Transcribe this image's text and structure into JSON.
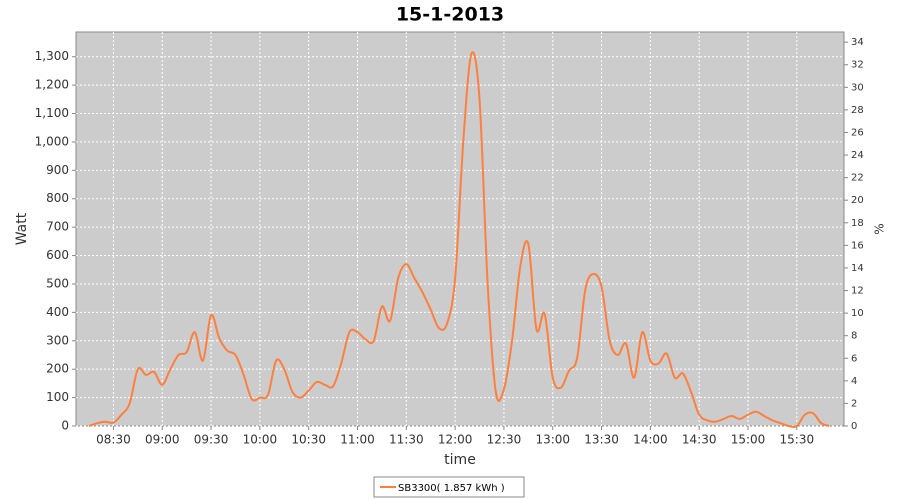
{
  "chart_data": {
    "type": "line",
    "title": "15-1-2013",
    "x_label": "time",
    "y_label": "Watt",
    "y2_label": "%",
    "x": [
      "08:15",
      "08:20",
      "08:25",
      "08:30",
      "08:35",
      "08:40",
      "08:45",
      "08:50",
      "08:55",
      "09:00",
      "09:05",
      "09:10",
      "09:15",
      "09:20",
      "09:25",
      "09:30",
      "09:35",
      "09:40",
      "09:45",
      "09:50",
      "09:55",
      "10:00",
      "10:05",
      "10:10",
      "10:15",
      "10:20",
      "10:25",
      "10:30",
      "10:35",
      "10:40",
      "10:45",
      "10:50",
      "10:55",
      "11:00",
      "11:05",
      "11:10",
      "11:15",
      "11:20",
      "11:25",
      "11:30",
      "11:35",
      "11:40",
      "11:45",
      "11:50",
      "11:55",
      "12:00",
      "12:05",
      "12:10",
      "12:15",
      "12:20",
      "12:25",
      "12:30",
      "12:35",
      "12:40",
      "12:45",
      "12:50",
      "12:55",
      "13:00",
      "13:05",
      "13:10",
      "13:15",
      "13:20",
      "13:25",
      "13:30",
      "13:35",
      "13:40",
      "13:45",
      "13:50",
      "13:55",
      "14:00",
      "14:05",
      "14:10",
      "14:15",
      "14:20",
      "14:25",
      "14:30",
      "14:35",
      "14:40",
      "14:45",
      "14:50",
      "14:55",
      "15:00",
      "15:05",
      "15:10",
      "15:15",
      "15:20",
      "15:25",
      "15:30",
      "15:35",
      "15:40",
      "15:45",
      "15:50"
    ],
    "series": [
      {
        "name": "SB3300( 1.857 kWh )",
        "color": "#ff7f3f",
        "values": [
          0,
          10,
          15,
          12,
          40,
          80,
          200,
          180,
          190,
          145,
          200,
          250,
          260,
          330,
          230,
          390,
          310,
          265,
          250,
          180,
          95,
          100,
          110,
          230,
          200,
          120,
          100,
          125,
          155,
          145,
          140,
          220,
          330,
          330,
          305,
          300,
          420,
          370,
          520,
          570,
          520,
          470,
          410,
          345,
          360,
          520,
          1000,
          1310,
          1150,
          500,
          120,
          130,
          300,
          560,
          640,
          340,
          395,
          170,
          135,
          195,
          240,
          480,
          535,
          490,
          300,
          250,
          290,
          170,
          330,
          230,
          220,
          255,
          170,
          185,
          120,
          40,
          20,
          15,
          25,
          35,
          25,
          40,
          50,
          35,
          20,
          10,
          0,
          0,
          40,
          45,
          10,
          0
        ]
      }
    ],
    "xlim": [
      "08:07",
      "15:59"
    ],
    "xticks": [
      "08:30",
      "09:00",
      "09:30",
      "10:00",
      "10:30",
      "11:00",
      "11:30",
      "12:00",
      "12:30",
      "13:00",
      "13:30",
      "14:00",
      "14:30",
      "15:00",
      "15:30"
    ],
    "ylim": [
      0,
      1387
    ],
    "yticks": [
      0,
      100,
      200,
      300,
      400,
      500,
      600,
      700,
      800,
      900,
      {
        "value": 1000,
        "label": "1,000"
      },
      {
        "value": 1100,
        "label": "1,100"
      },
      {
        "value": 1200,
        "label": "1,200"
      },
      {
        "value": 1300,
        "label": "1,300"
      }
    ],
    "y2lim": [
      0,
      34.9
    ],
    "y2ticks": [
      0,
      2,
      4,
      6,
      8,
      10,
      12,
      14,
      16,
      18,
      20,
      22,
      24,
      26,
      28,
      30,
      32,
      34
    ],
    "grid": true,
    "legend": "bottom"
  }
}
